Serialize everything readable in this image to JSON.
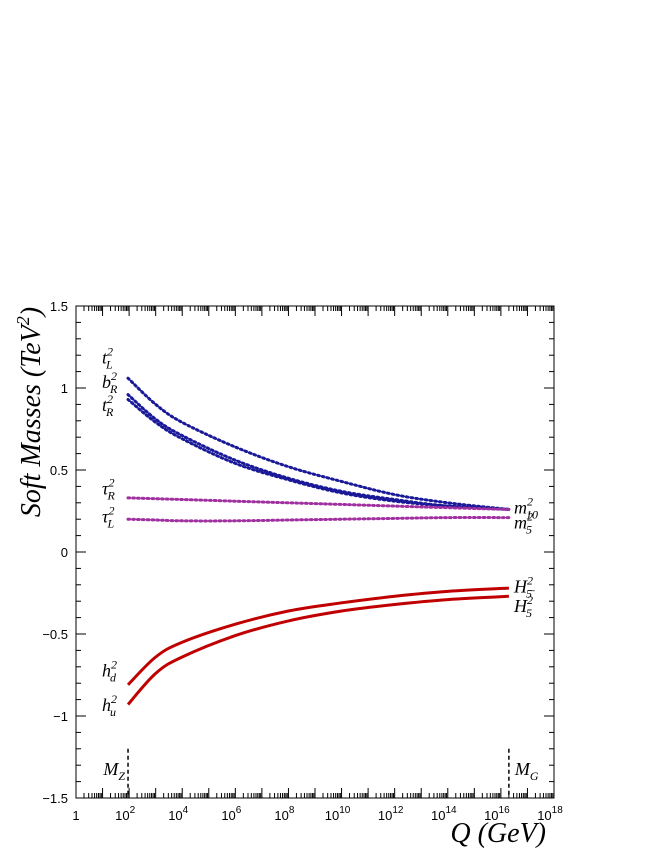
{
  "chart_data": {
    "type": "line",
    "title": "",
    "xlabel": "Q (GeV)",
    "ylabel": {
      "main": "Soft Masses (TeV",
      "sup": "2",
      "close": ")"
    },
    "xscale": "log10",
    "xlim": [
      1,
      1e+18
    ],
    "ylim": [
      -1.5,
      1.5
    ],
    "grid": false,
    "x_ticks": [
      {
        "value": 1,
        "base": "1",
        "exp": ""
      },
      {
        "value": 100.0,
        "base": "10",
        "exp": "2"
      },
      {
        "value": 10000.0,
        "base": "10",
        "exp": "4"
      },
      {
        "value": 1000000.0,
        "base": "10",
        "exp": "6"
      },
      {
        "value": 100000000.0,
        "base": "10",
        "exp": "8"
      },
      {
        "value": 10000000000.0,
        "base": "10",
        "exp": "10"
      },
      {
        "value": 1000000000000.0,
        "base": "10",
        "exp": "12"
      },
      {
        "value": 100000000000000.0,
        "base": "10",
        "exp": "14"
      },
      {
        "value": 1e+16,
        "base": "10",
        "exp": "16"
      },
      {
        "value": 1e+18,
        "base": "10",
        "exp": "18"
      }
    ],
    "y_ticks": [
      {
        "value": 1.5,
        "label": "1.5"
      },
      {
        "value": 1,
        "label": "1"
      },
      {
        "value": 0.5,
        "label": "0.5"
      },
      {
        "value": 0,
        "label": "0"
      },
      {
        "value": -0.5,
        "label": "−0.5"
      },
      {
        "value": -1,
        "label": "−1"
      },
      {
        "value": -1.5,
        "label": "−1.5"
      }
    ],
    "x": [
      91.0,
      1000.0,
      10000.0,
      1000000.0,
      100000000.0,
      10000000000.0,
      1000000000000.0,
      100000000000000.0,
      2e+16
    ],
    "series": [
      {
        "label_side": "left",
        "name": {
          "base": "t",
          "sup": "2",
          "sub": "L"
        },
        "values": [
          1.06,
          0.9,
          0.79,
          0.64,
          0.52,
          0.43,
          0.35,
          0.3,
          0.26
        ],
        "color": "#1a1a99",
        "style": "dotted"
      },
      {
        "label_side": "left",
        "name": {
          "base": "b",
          "sup": "2",
          "sub": "R"
        },
        "values": [
          0.96,
          0.81,
          0.71,
          0.56,
          0.45,
          0.37,
          0.32,
          0.28,
          0.26
        ],
        "color": "#1a1a99",
        "style": "dotted"
      },
      {
        "label_side": "left",
        "name": {
          "base": "t",
          "sup": "2",
          "sub": "R"
        },
        "values": [
          0.93,
          0.79,
          0.69,
          0.54,
          0.44,
          0.36,
          0.31,
          0.28,
          0.26
        ],
        "color": "#1a1a99",
        "style": "dotted"
      },
      {
        "label_side": "left",
        "name": {
          "base": "τ",
          "sup": "2",
          "sub": "R"
        },
        "values": [
          0.33,
          0.325,
          0.32,
          0.31,
          0.3,
          0.29,
          0.28,
          0.27,
          0.26
        ],
        "color": "#a030a0",
        "style": "dotted"
      },
      {
        "label_side": "left",
        "name": {
          "base": "τ",
          "sup": "2",
          "sub": "L"
        },
        "values": [
          0.2,
          0.195,
          0.19,
          0.19,
          0.195,
          0.2,
          0.205,
          0.21,
          0.21
        ],
        "color": "#a030a0",
        "style": "dotted"
      },
      {
        "label_side": "left",
        "name": {
          "base": "h",
          "sup": "2",
          "sub": "d"
        },
        "values": [
          -0.81,
          -0.64,
          -0.55,
          -0.44,
          -0.36,
          -0.31,
          -0.27,
          -0.24,
          -0.22
        ],
        "color": "#c00000",
        "style": "solid"
      },
      {
        "label_side": "left",
        "name": {
          "base": "h",
          "sup": "2",
          "sub": "u"
        },
        "values": [
          -0.93,
          -0.74,
          -0.64,
          -0.51,
          -0.42,
          -0.36,
          -0.32,
          -0.29,
          -0.27
        ],
        "color": "#c00000",
        "style": "solid"
      }
    ],
    "right_labels": [
      {
        "y": 0.27,
        "base": "m",
        "sup": "2",
        "sub": "10"
      },
      {
        "y": 0.18,
        "base": "m",
        "sup": "2",
        "sub": "5"
      },
      {
        "y": -0.21,
        "base": "H",
        "sup": "2",
        "sub": "5̄"
      },
      {
        "y": -0.33,
        "base": "H",
        "sup": "2",
        "sub": "5"
      }
    ],
    "markers": [
      {
        "x": 91.0,
        "base": "M",
        "sub": "Z",
        "side": "left"
      },
      {
        "x": 2e+16,
        "base": "M",
        "sub": "G",
        "side": "right"
      }
    ],
    "marker_range": [
      -1.5,
      -1.2
    ]
  }
}
